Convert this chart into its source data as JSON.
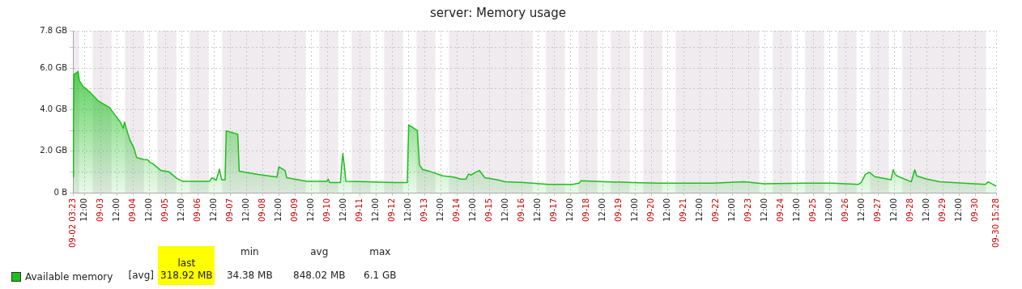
{
  "chart_data": {
    "type": "area",
    "title": "server: Memory usage",
    "x": [
      "--09-02T03:23",
      "--09-02T03:48",
      "--09-02T04:12",
      "--09-02T06:36",
      "--09-02T07:12",
      "--09-02T08:12",
      "--09-02T10:36",
      "--09-02T16:36",
      "--09-02T22:36",
      "--09-03T06:36",
      "--09-03T11:36",
      "--09-03T14:36",
      "--09-03T16:36",
      "--09-03T17:36",
      "--09-03T19:36",
      "--09-03T21:36",
      "--09-04T00:36",
      "--09-04T02:36",
      "--09-04T07:36",
      "--09-04T10:36",
      "--09-04T12:36",
      "--09-04T14:36",
      "--09-04T20:36",
      "--09-05T02:36",
      "--09-05T08:36",
      "--09-05T12:36",
      "--09-06T08:36",
      "--09-06T10:36",
      "--09-06T13:36",
      "--09-06T16:00",
      "--09-06T17:36",
      "--09-06T20:12",
      "--09-06T21:00",
      "--09-07T02:36",
      "--09-07T05:36",
      "--09-07T06:36",
      "--09-07T20:36",
      "--09-08T10:36",
      "--09-08T12:00",
      "--09-08T16:36",
      "--09-08T17:48",
      "--09-09T08:36",
      "--09-09T23:36",
      "--09-10T00:36",
      "--09-10T01:36",
      "--09-10T09:36",
      "--09-10T10:36",
      "--09-10T11:24",
      "--09-10T12:36",
      "--09-10T13:36",
      "--09-11T04:36",
      "--09-12T00:36",
      "--09-12T11:12",
      "--09-12T12:12",
      "--09-12T14:36",
      "--09-12T18:36",
      "--09-12T20:12",
      "--09-12T22:36",
      "--09-13T03:36",
      "--09-13T13:36",
      "--09-13T21:36",
      "--09-14T02:36",
      "--09-14T06:36",
      "--09-14T08:36",
      "--09-14T10:36",
      "--09-14T13:36",
      "--09-14T16:36",
      "--09-14T20:36",
      "--09-15T05:36",
      "--09-15T11:36",
      "--09-16T01:36",
      "--09-16T19:36",
      "--09-17T13:36",
      "--09-17T18:36",
      "--09-17T20:00",
      "--09-18T13:36",
      "--09-19T09:36",
      "--09-20T05:36",
      "--09-21T21:36",
      "--09-22T20:36",
      "--09-23T11:36",
      "--09-24T17:36",
      "--09-25T13:36",
      "--09-26T09:36",
      "--09-26T11:36",
      "--09-26T14:36",
      "--09-26T17:36",
      "--09-26T21:36",
      "--09-27T09:36",
      "--09-27T11:12",
      "--09-27T12:36",
      "--09-27T14:00",
      "--09-28T00:36",
      "--09-28T03:12",
      "--09-28T04:36",
      "--09-28T11:36",
      "--09-28T21:36",
      "--09-29T17:36",
      "--09-30T07:36",
      "--09-30T09:36",
      "--09-30T15:28"
    ],
    "series": [
      {
        "name": "Available memory",
        "color": "#1dbf1d",
        "values": [
          0.75,
          3.5,
          5.7,
          5.8,
          5.85,
          5.4,
          5.15,
          4.8,
          4.4,
          4.1,
          3.65,
          3.4,
          3.1,
          3.4,
          2.95,
          2.55,
          2.15,
          1.7,
          1.6,
          1.59,
          1.45,
          1.4,
          1.07,
          1.0,
          0.68,
          0.55,
          0.55,
          0.72,
          0.6,
          1.13,
          0.62,
          0.62,
          2.97,
          2.88,
          2.81,
          1.03,
          0.88,
          0.75,
          1.24,
          1.07,
          0.72,
          0.55,
          0.55,
          0.65,
          0.49,
          0.49,
          1.33,
          1.88,
          1.26,
          0.55,
          0.53,
          0.49,
          0.49,
          3.26,
          3.16,
          3.0,
          1.33,
          1.11,
          1.03,
          0.81,
          0.75,
          0.65,
          0.65,
          0.9,
          0.85,
          0.98,
          1.07,
          0.72,
          0.62,
          0.53,
          0.49,
          0.4,
          0.4,
          0.46,
          0.58,
          0.53,
          0.49,
          0.46,
          0.46,
          0.53,
          0.43,
          0.46,
          0.46,
          0.4,
          0.49,
          0.88,
          0.98,
          0.77,
          0.62,
          1.1,
          0.9,
          0.81,
          0.52,
          1.1,
          0.81,
          0.66,
          0.53,
          0.45,
          0.4,
          0.52,
          0.32
        ]
      }
    ],
    "xlim": [
      "--09-02T03:23",
      "--09-30T15:28"
    ],
    "xticks": [
      {
        "value": "--09-02T03:23",
        "label": "09-02 03:23"
      },
      {
        "value": "--09-02T12:00",
        "label": "12:00"
      },
      {
        "value": "--09-03T00:00",
        "label": "09-03"
      },
      {
        "value": "--09-03T12:00",
        "label": "12:00"
      },
      {
        "value": "--09-04T00:00",
        "label": "09-04"
      },
      {
        "value": "--09-04T12:00",
        "label": "12:00"
      },
      {
        "value": "--09-05T00:00",
        "label": "09-05"
      },
      {
        "value": "--09-05T12:00",
        "label": "12:00"
      },
      {
        "value": "--09-06T00:00",
        "label": "09-06"
      },
      {
        "value": "--09-06T12:00",
        "label": "12:00"
      },
      {
        "value": "--09-07T00:00",
        "label": "09-07"
      },
      {
        "value": "--09-07T12:00",
        "label": "12:00"
      },
      {
        "value": "--09-08T00:00",
        "label": "09-08"
      },
      {
        "value": "--09-08T12:00",
        "label": "12:00"
      },
      {
        "value": "--09-09T00:00",
        "label": "09-09"
      },
      {
        "value": "--09-09T12:00",
        "label": "12:00"
      },
      {
        "value": "--09-10T00:00",
        "label": "09-10"
      },
      {
        "value": "--09-10T12:00",
        "label": "12:00"
      },
      {
        "value": "--09-11T00:00",
        "label": "09-11"
      },
      {
        "value": "--09-11T12:00",
        "label": "12:00"
      },
      {
        "value": "--09-12T00:00",
        "label": "09-12"
      },
      {
        "value": "--09-12T12:00",
        "label": "12:00"
      },
      {
        "value": "--09-13T00:00",
        "label": "09-13"
      },
      {
        "value": "--09-13T12:00",
        "label": "12:00"
      },
      {
        "value": "--09-14T00:00",
        "label": "09-14"
      },
      {
        "value": "--09-14T12:00",
        "label": "12:00"
      },
      {
        "value": "--09-15T00:00",
        "label": "09-15"
      },
      {
        "value": "--09-15T12:00",
        "label": "12:00"
      },
      {
        "value": "--09-16T00:00",
        "label": "09-16"
      },
      {
        "value": "--09-16T12:00",
        "label": "12:00"
      },
      {
        "value": "--09-17T00:00",
        "label": "09-17"
      },
      {
        "value": "--09-17T12:00",
        "label": "12:00"
      },
      {
        "value": "--09-18T00:00",
        "label": "09-18"
      },
      {
        "value": "--09-18T12:00",
        "label": "12:00"
      },
      {
        "value": "--09-19T00:00",
        "label": "09-19"
      },
      {
        "value": "--09-19T12:00",
        "label": "12:00"
      },
      {
        "value": "--09-20T00:00",
        "label": "09-20"
      },
      {
        "value": "--09-20T12:00",
        "label": "12:00"
      },
      {
        "value": "--09-21T00:00",
        "label": "09-21"
      },
      {
        "value": "--09-21T12:00",
        "label": "12:00"
      },
      {
        "value": "--09-22T00:00",
        "label": "09-22"
      },
      {
        "value": "--09-22T12:00",
        "label": "12:00"
      },
      {
        "value": "--09-23T00:00",
        "label": "09-23"
      },
      {
        "value": "--09-23T12:00",
        "label": "12:00"
      },
      {
        "value": "--09-24T00:00",
        "label": "09-24"
      },
      {
        "value": "--09-24T12:00",
        "label": "12:00"
      },
      {
        "value": "--09-25T00:00",
        "label": "09-25"
      },
      {
        "value": "--09-25T12:00",
        "label": "12:00"
      },
      {
        "value": "--09-26T00:00",
        "label": "09-26"
      },
      {
        "value": "--09-26T12:00",
        "label": "12:00"
      },
      {
        "value": "--09-27T00:00",
        "label": "09-27"
      },
      {
        "value": "--09-27T12:00",
        "label": "12:00"
      },
      {
        "value": "--09-28T00:00",
        "label": "09-28"
      },
      {
        "value": "--09-28T12:00",
        "label": "12:00"
      },
      {
        "value": "--09-29T00:00",
        "label": "09-29"
      },
      {
        "value": "--09-29T12:00",
        "label": "12:00"
      },
      {
        "value": "--09-30T00:00",
        "label": "09-30"
      },
      {
        "value": "--09-30T15:28",
        "label": "09-30 15:28"
      }
    ],
    "ylim": [
      0,
      7.8
    ],
    "yticks": [
      {
        "value": 0,
        "label": "0 B"
      },
      {
        "value": 1,
        "label": null
      },
      {
        "value": 2,
        "label": "2.0 GB"
      },
      {
        "value": 3,
        "label": null
      },
      {
        "value": 4,
        "label": "4.0 GB"
      },
      {
        "value": 5,
        "label": null
      },
      {
        "value": 6,
        "label": "6.0 GB"
      },
      {
        "value": 7,
        "label": null
      },
      {
        "value": 7.8,
        "label": "7.8 GB"
      }
    ],
    "bands": [
      {
        "axis": "x",
        "from": "--09-02T03:23",
        "to": "--09-02T08:00",
        "color": "#efebef"
      },
      {
        "axis": "x",
        "from": "--09-02T18:00",
        "to": "--09-03T08:00",
        "color": "#efebef"
      },
      {
        "axis": "x",
        "from": "--09-03T18:00",
        "to": "--09-04T08:00",
        "color": "#efebef"
      },
      {
        "axis": "x",
        "from": "--09-04T18:00",
        "to": "--09-05T08:00",
        "color": "#efebef"
      },
      {
        "axis": "x",
        "from": "--09-05T18:00",
        "to": "--09-06T08:00",
        "color": "#efebef"
      },
      {
        "axis": "x",
        "from": "--09-06T18:00",
        "to": "--09-09T08:00",
        "color": "#efebef"
      },
      {
        "axis": "x",
        "from": "--09-09T18:00",
        "to": "--09-10T08:00",
        "color": "#efebef"
      },
      {
        "axis": "x",
        "from": "--09-10T18:00",
        "to": "--09-11T08:00",
        "color": "#efebef"
      },
      {
        "axis": "x",
        "from": "--09-11T18:00",
        "to": "--09-12T08:00",
        "color": "#efebef"
      },
      {
        "axis": "x",
        "from": "--09-12T18:00",
        "to": "--09-13T08:00",
        "color": "#efebef"
      },
      {
        "axis": "x",
        "from": "--09-13T18:00",
        "to": "--09-16T08:00",
        "color": "#efebef"
      },
      {
        "axis": "x",
        "from": "--09-16T18:00",
        "to": "--09-17T08:00",
        "color": "#efebef"
      },
      {
        "axis": "x",
        "from": "--09-17T18:00",
        "to": "--09-18T08:00",
        "color": "#efebef"
      },
      {
        "axis": "x",
        "from": "--09-18T18:00",
        "to": "--09-19T08:00",
        "color": "#efebef"
      },
      {
        "axis": "x",
        "from": "--09-19T18:00",
        "to": "--09-20T08:00",
        "color": "#efebef"
      },
      {
        "axis": "x",
        "from": "--09-20T18:00",
        "to": "--09-23T08:00",
        "color": "#efebef"
      },
      {
        "axis": "x",
        "from": "--09-23T18:00",
        "to": "--09-24T08:00",
        "color": "#efebef"
      },
      {
        "axis": "x",
        "from": "--09-24T18:00",
        "to": "--09-25T08:00",
        "color": "#efebef"
      },
      {
        "axis": "x",
        "from": "--09-25T18:00",
        "to": "--09-26T08:00",
        "color": "#efebef"
      },
      {
        "axis": "x",
        "from": "--09-26T18:00",
        "to": "--09-27T08:00",
        "color": "#efebef"
      },
      {
        "axis": "x",
        "from": "--09-27T18:00",
        "to": "--09-30T08:00",
        "color": "#efebef"
      }
    ],
    "annotations": [
      "[avg]",
      "last",
      "min",
      "avg",
      "max",
      "318.92 MB",
      "34.38 MB",
      "848.02 MB",
      "6.1 GB"
    ],
    "grid": true,
    "legend": "bottom",
    "marker": "none"
  }
}
